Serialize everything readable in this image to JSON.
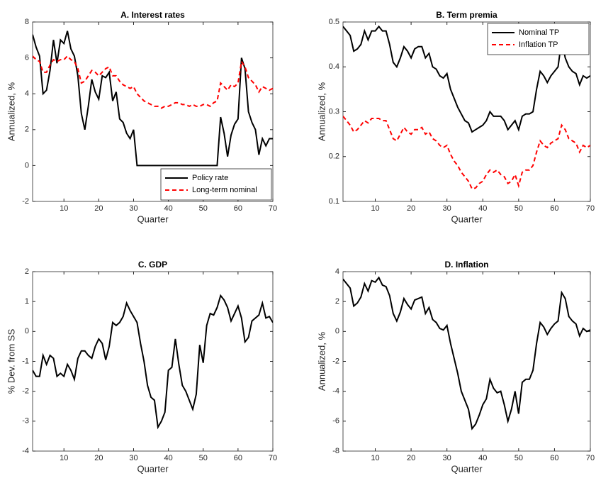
{
  "chart_data": [
    {
      "type": "line",
      "title": "A. Interest rates",
      "xlabel": "Quarter",
      "ylabel": "Annualized, %",
      "x": [
        1,
        2,
        3,
        4,
        5,
        6,
        7,
        8,
        9,
        10,
        11,
        12,
        13,
        14,
        15,
        16,
        17,
        18,
        19,
        20,
        21,
        22,
        23,
        24,
        25,
        26,
        27,
        28,
        29,
        30,
        31,
        32,
        33,
        34,
        35,
        36,
        37,
        38,
        39,
        40,
        41,
        42,
        43,
        44,
        45,
        46,
        47,
        48,
        49,
        50,
        51,
        52,
        53,
        54,
        55,
        56,
        57,
        58,
        59,
        60,
        61,
        62,
        63,
        64,
        65,
        66,
        67,
        68,
        69,
        70
      ],
      "xlim": [
        1,
        70
      ],
      "xticks": [
        10,
        20,
        30,
        40,
        50,
        60,
        70
      ],
      "ylim": [
        -2,
        8
      ],
      "yticks": [
        -2,
        0,
        2,
        4,
        6,
        8
      ],
      "legend": "lower right",
      "series": [
        {
          "name": "Policy rate",
          "color": "#000000",
          "linestyle": "solid",
          "values": [
            7.3,
            6.6,
            6.1,
            4.0,
            4.2,
            5.3,
            7.0,
            5.7,
            7.0,
            6.8,
            7.5,
            6.5,
            6.1,
            5.0,
            2.9,
            2.0,
            3.3,
            4.8,
            4.1,
            3.7,
            5.0,
            4.9,
            5.2,
            3.6,
            4.1,
            2.6,
            2.4,
            1.8,
            1.5,
            2.0,
            0,
            0,
            0,
            0,
            0,
            0,
            0,
            0,
            0,
            0,
            0,
            0,
            0,
            0,
            0,
            0,
            0,
            0,
            0,
            0,
            0,
            0,
            0,
            0,
            2.7,
            1.8,
            0.5,
            1.7,
            2.3,
            2.6,
            6.0,
            5.4,
            3.0,
            2.4,
            2.0,
            0.6,
            1.5,
            1.1,
            1.5,
            1.5
          ]
        },
        {
          "name": "Long-term nominal",
          "color": "#ff0000",
          "linestyle": "dashed",
          "values": [
            6.1,
            5.9,
            5.8,
            5.2,
            5.2,
            5.6,
            5.9,
            5.8,
            5.9,
            5.9,
            6.1,
            5.9,
            5.8,
            5.4,
            4.6,
            4.7,
            5.0,
            5.3,
            5.2,
            5.0,
            5.2,
            5.4,
            5.5,
            5.0,
            5.0,
            4.7,
            4.5,
            4.4,
            4.3,
            4.4,
            4.0,
            3.8,
            3.6,
            3.5,
            3.4,
            3.3,
            3.3,
            3.2,
            3.3,
            3.3,
            3.4,
            3.5,
            3.5,
            3.4,
            3.4,
            3.3,
            3.4,
            3.3,
            3.3,
            3.4,
            3.4,
            3.3,
            3.5,
            3.6,
            4.6,
            4.4,
            4.2,
            4.5,
            4.4,
            4.6,
            5.8,
            5.5,
            4.9,
            4.7,
            4.5,
            4.1,
            4.4,
            4.3,
            4.2,
            4.3
          ]
        }
      ]
    },
    {
      "type": "line",
      "title": "B. Term premia",
      "xlabel": "Quarter",
      "ylabel": "Annualized, %",
      "x": [
        1,
        2,
        3,
        4,
        5,
        6,
        7,
        8,
        9,
        10,
        11,
        12,
        13,
        14,
        15,
        16,
        17,
        18,
        19,
        20,
        21,
        22,
        23,
        24,
        25,
        26,
        27,
        28,
        29,
        30,
        31,
        32,
        33,
        34,
        35,
        36,
        37,
        38,
        39,
        40,
        41,
        42,
        43,
        44,
        45,
        46,
        47,
        48,
        49,
        50,
        51,
        52,
        53,
        54,
        55,
        56,
        57,
        58,
        59,
        60,
        61,
        62,
        63,
        64,
        65,
        66,
        67,
        68,
        69,
        70
      ],
      "xlim": [
        1,
        70
      ],
      "xticks": [
        10,
        20,
        30,
        40,
        50,
        60,
        70
      ],
      "ylim": [
        0.1,
        0.5
      ],
      "yticks": [
        0.1,
        0.2,
        0.3,
        0.4,
        0.5
      ],
      "legend": "upper right",
      "series": [
        {
          "name": "Nominal TP",
          "color": "#000000",
          "linestyle": "solid",
          "values": [
            0.49,
            0.48,
            0.47,
            0.435,
            0.44,
            0.45,
            0.48,
            0.46,
            0.48,
            0.48,
            0.49,
            0.48,
            0.48,
            0.45,
            0.41,
            0.4,
            0.42,
            0.445,
            0.435,
            0.42,
            0.44,
            0.445,
            0.445,
            0.42,
            0.43,
            0.4,
            0.395,
            0.38,
            0.375,
            0.385,
            0.35,
            0.33,
            0.31,
            0.295,
            0.28,
            0.275,
            0.255,
            0.26,
            0.265,
            0.27,
            0.28,
            0.3,
            0.29,
            0.29,
            0.29,
            0.28,
            0.26,
            0.27,
            0.28,
            0.26,
            0.29,
            0.295,
            0.295,
            0.3,
            0.35,
            0.39,
            0.38,
            0.365,
            0.38,
            0.39,
            0.4,
            0.46,
            0.42,
            0.4,
            0.39,
            0.385,
            0.36,
            0.38,
            0.375,
            0.38
          ]
        },
        {
          "name": "Inflation TP",
          "color": "#ff0000",
          "linestyle": "dashed",
          "values": [
            0.29,
            0.28,
            0.27,
            0.255,
            0.26,
            0.27,
            0.28,
            0.275,
            0.285,
            0.285,
            0.285,
            0.28,
            0.28,
            0.26,
            0.24,
            0.235,
            0.25,
            0.265,
            0.255,
            0.25,
            0.26,
            0.26,
            0.265,
            0.25,
            0.255,
            0.24,
            0.235,
            0.225,
            0.22,
            0.225,
            0.205,
            0.19,
            0.18,
            0.165,
            0.155,
            0.145,
            0.128,
            0.13,
            0.14,
            0.145,
            0.16,
            0.17,
            0.165,
            0.17,
            0.16,
            0.155,
            0.14,
            0.145,
            0.16,
            0.135,
            0.165,
            0.17,
            0.17,
            0.18,
            0.21,
            0.235,
            0.225,
            0.22,
            0.23,
            0.235,
            0.24,
            0.27,
            0.26,
            0.24,
            0.235,
            0.23,
            0.21,
            0.225,
            0.22,
            0.225
          ]
        }
      ]
    },
    {
      "type": "line",
      "title": "C. GDP",
      "xlabel": "Quarter",
      "ylabel": "% Dev. from SS",
      "x": [
        1,
        2,
        3,
        4,
        5,
        6,
        7,
        8,
        9,
        10,
        11,
        12,
        13,
        14,
        15,
        16,
        17,
        18,
        19,
        20,
        21,
        22,
        23,
        24,
        25,
        26,
        27,
        28,
        29,
        30,
        31,
        32,
        33,
        34,
        35,
        36,
        37,
        38,
        39,
        40,
        41,
        42,
        43,
        44,
        45,
        46,
        47,
        48,
        49,
        50,
        51,
        52,
        53,
        54,
        55,
        56,
        57,
        58,
        59,
        60,
        61,
        62,
        63,
        64,
        65,
        66,
        67,
        68,
        69,
        70
      ],
      "xlim": [
        1,
        70
      ],
      "xticks": [
        10,
        20,
        30,
        40,
        50,
        60,
        70
      ],
      "ylim": [
        -4,
        2
      ],
      "yticks": [
        -4,
        -3,
        -2,
        -1,
        0,
        1,
        2
      ],
      "series": [
        {
          "color": "#000000",
          "linestyle": "solid",
          "values": [
            -1.3,
            -1.5,
            -1.5,
            -0.8,
            -1.1,
            -0.8,
            -0.9,
            -1.5,
            -1.4,
            -1.5,
            -1.1,
            -1.3,
            -1.6,
            -0.9,
            -0.65,
            -0.65,
            -0.8,
            -0.9,
            -0.5,
            -0.25,
            -0.4,
            -0.95,
            -0.5,
            0.3,
            0.2,
            0.3,
            0.5,
            0.95,
            0.7,
            0.5,
            0.3,
            -0.4,
            -1.0,
            -1.8,
            -2.2,
            -2.3,
            -3.2,
            -3.0,
            -2.7,
            -1.3,
            -1.2,
            -0.25,
            -1.1,
            -1.8,
            -2.0,
            -2.3,
            -2.6,
            -2.1,
            -0.45,
            -1.05,
            0.2,
            0.6,
            0.55,
            0.8,
            1.2,
            1.05,
            0.8,
            0.35,
            0.6,
            0.85,
            0.45,
            -0.35,
            -0.2,
            0.35,
            0.45,
            0.55,
            0.95,
            0.45,
            0.5,
            0.3
          ]
        }
      ]
    },
    {
      "type": "line",
      "title": "D. Inflation",
      "xlabel": "Quarter",
      "ylabel": "Annualized, %",
      "x": [
        1,
        2,
        3,
        4,
        5,
        6,
        7,
        8,
        9,
        10,
        11,
        12,
        13,
        14,
        15,
        16,
        17,
        18,
        19,
        20,
        21,
        22,
        23,
        24,
        25,
        26,
        27,
        28,
        29,
        30,
        31,
        32,
        33,
        34,
        35,
        36,
        37,
        38,
        39,
        40,
        41,
        42,
        43,
        44,
        45,
        46,
        47,
        48,
        49,
        50,
        51,
        52,
        53,
        54,
        55,
        56,
        57,
        58,
        59,
        60,
        61,
        62,
        63,
        64,
        65,
        66,
        67,
        68,
        69,
        70
      ],
      "xlim": [
        1,
        70
      ],
      "xticks": [
        10,
        20,
        30,
        40,
        50,
        60,
        70
      ],
      "ylim": [
        -8,
        4
      ],
      "yticks": [
        -8,
        -6,
        -4,
        -2,
        0,
        2,
        4
      ],
      "series": [
        {
          "color": "#000000",
          "linestyle": "solid",
          "values": [
            3.5,
            3.2,
            2.9,
            1.7,
            1.9,
            2.3,
            3.2,
            2.7,
            3.4,
            3.3,
            3.6,
            3.1,
            3.0,
            2.4,
            1.2,
            0.7,
            1.3,
            2.2,
            1.8,
            1.5,
            2.1,
            2.2,
            2.3,
            1.2,
            1.6,
            0.8,
            0.6,
            0.2,
            0.1,
            0.4,
            -0.8,
            -1.8,
            -2.8,
            -4.0,
            -4.6,
            -5.2,
            -6.5,
            -6.2,
            -5.6,
            -4.9,
            -4.5,
            -3.2,
            -3.8,
            -4.1,
            -4.0,
            -4.9,
            -6.0,
            -5.2,
            -4.0,
            -5.5,
            -3.4,
            -3.2,
            -3.2,
            -2.6,
            -0.8,
            0.6,
            0.3,
            -0.2,
            0.2,
            0.5,
            0.7,
            2.6,
            2.2,
            1.0,
            0.7,
            0.5,
            -0.3,
            0.2,
            0.0,
            0.1
          ]
        }
      ]
    }
  ]
}
